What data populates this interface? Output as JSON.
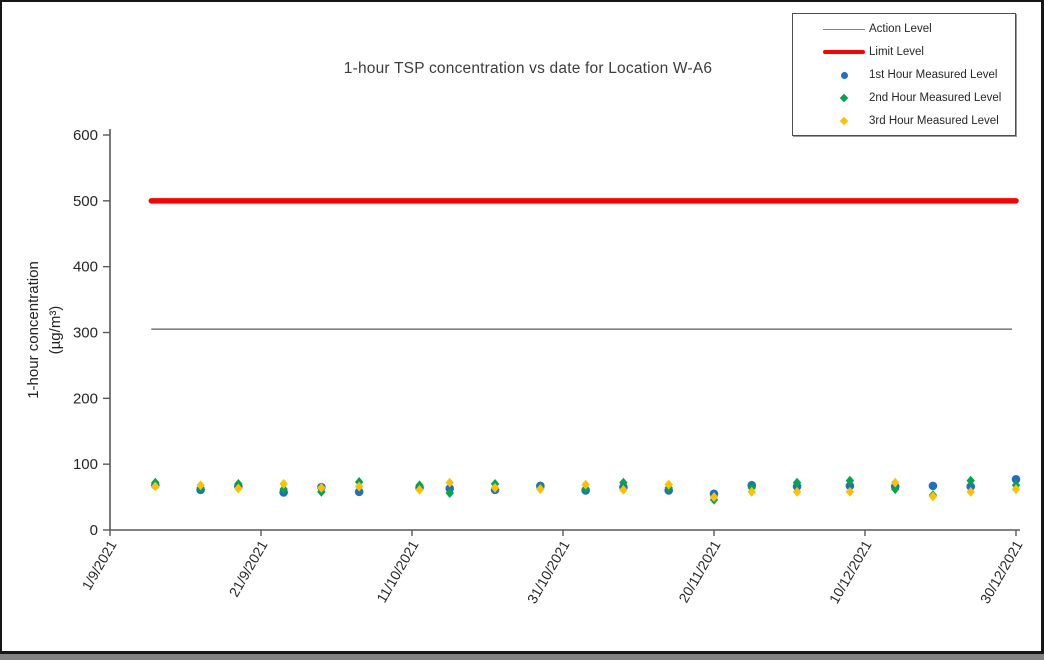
{
  "window": {
    "background": "#ffffff",
    "border_color": "#161616",
    "shadow_color": "#828282"
  },
  "chart_data": {
    "type": "scatter",
    "title": "1-hour TSP concentration vs date for Location  W-A6",
    "ylabel_line1": "1-hour concentration",
    "ylabel_line2": "(µg/m³)",
    "ylim": [
      0,
      600
    ],
    "yticks": [
      0,
      100,
      200,
      300,
      400,
      500,
      600
    ],
    "x_axis": {
      "tick_labels": [
        "1/9/2021",
        "21/9/2021",
        "11/10/2021",
        "31/10/2021",
        "20/11/2021",
        "10/12/2021",
        "30/12/2021"
      ],
      "range_days": [
        0,
        120
      ],
      "tick_interval_days": 20
    },
    "grid": false,
    "legend_position": "top-right",
    "reference_lines": {
      "action": {
        "label": "Action Level",
        "value": 305,
        "color": "#7f7f7f"
      },
      "limit": {
        "label": "Limit Level",
        "value": 500,
        "color": "#ff0000"
      }
    },
    "series": [
      {
        "name": "1st Hour Measured Level",
        "key": "h1",
        "marker": "circle",
        "color": "#1f70c1"
      },
      {
        "name": "2nd Hour Measured Level",
        "key": "h2",
        "marker": "diamond",
        "color": "#00a550"
      },
      {
        "name": "3rd Hour Measured Level",
        "key": "h3",
        "marker": "diamond",
        "color": "#ffc000"
      }
    ],
    "points": [
      {
        "day": 6,
        "h1": 68,
        "h2": 72,
        "h3": 66
      },
      {
        "day": 12,
        "h1": 61,
        "h2": 64,
        "h3": 68
      },
      {
        "day": 17,
        "h1": 66,
        "h2": 70,
        "h3": 63
      },
      {
        "day": 23,
        "h1": 57,
        "h2": 62,
        "h3": 70
      },
      {
        "day": 28,
        "h1": 65,
        "h2": 58,
        "h3": 64
      },
      {
        "day": 33,
        "h1": 58,
        "h2": 73,
        "h3": 66
      },
      {
        "day": 41,
        "h1": 64,
        "h2": 68,
        "h3": 61
      },
      {
        "day": 45,
        "h1": 63,
        "h2": 56,
        "h3": 72
      },
      {
        "day": 51,
        "h1": 61,
        "h2": 70,
        "h3": 64
      },
      {
        "day": 57,
        "h1": 67,
        "h2": 64,
        "h3": 62
      },
      {
        "day": 63,
        "h1": 60,
        "h2": 63,
        "h3": 69
      },
      {
        "day": 68,
        "h1": 65,
        "h2": 72,
        "h3": 61
      },
      {
        "day": 74,
        "h1": 60,
        "h2": 64,
        "h3": 69
      },
      {
        "day": 80,
        "h1": 55,
        "h2": 46,
        "h3": 50
      },
      {
        "day": 85,
        "h1": 68,
        "h2": 64,
        "h3": 58
      },
      {
        "day": 91,
        "h1": 66,
        "h2": 72,
        "h3": 58
      },
      {
        "day": 98,
        "h1": 67,
        "h2": 75,
        "h3": 58
      },
      {
        "day": 104,
        "h1": 66,
        "h2": 62,
        "h3": 72
      },
      {
        "day": 109,
        "h1": 67,
        "h2": 53,
        "h3": 51
      },
      {
        "day": 114,
        "h1": 66,
        "h2": 75,
        "h3": 58
      },
      {
        "day": 120,
        "h1": 77,
        "h2": 68,
        "h3": 62
      }
    ],
    "axis_color": "#595959",
    "tick_text_color": "#262626"
  }
}
